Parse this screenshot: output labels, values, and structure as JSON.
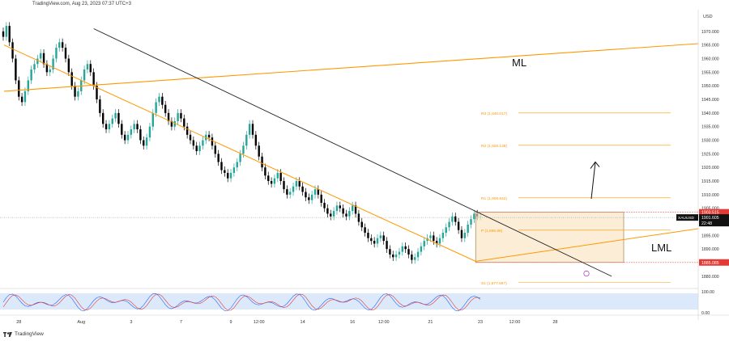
{
  "header": {
    "text": "TradingView.com, Aug 23, 2023 07:37 UTC+3",
    "footer_logo_text": "TradingView"
  },
  "chart_data": {
    "type": "candlestick",
    "currency_label": "USD",
    "y_ticks": [
      1970,
      1965,
      1960,
      1955,
      1950,
      1945,
      1940,
      1935,
      1930,
      1925,
      1920,
      1915,
      1910,
      1905,
      1900,
      1895,
      1890,
      1880
    ],
    "y_tick_labels": [
      "1970.000",
      "1965.000",
      "1960.000",
      "1955.000",
      "1950.000",
      "1945.000",
      "1940.000",
      "1935.000",
      "1930.000",
      "1925.000",
      "1920.000",
      "1915.000",
      "1910.000",
      "1905.000",
      "1900.000",
      "1895.000",
      "1890.000",
      "1880.000"
    ],
    "ylim": [
      1877,
      1975
    ],
    "x_labels": [
      {
        "label": "28",
        "i": 5
      },
      {
        "label": "Aug",
        "i": 25
      },
      {
        "label": "3",
        "i": 41
      },
      {
        "label": "7",
        "i": 57
      },
      {
        "label": "9",
        "i": 73
      },
      {
        "label": "12:00",
        "i": 82
      },
      {
        "label": "14",
        "i": 96
      },
      {
        "label": "16",
        "i": 112
      },
      {
        "label": "12:00",
        "i": 122
      },
      {
        "label": "21",
        "i": 137
      },
      {
        "label": "23",
        "i": 153
      },
      {
        "label": "12:00",
        "i": 164
      },
      {
        "label": "28",
        "i": 177
      }
    ],
    "candles_approx_close": [
      1968,
      1972,
      1966,
      1960,
      1952,
      1946,
      1944,
      1948,
      1952,
      1956,
      1958,
      1960,
      1962,
      1958,
      1955,
      1956,
      1960,
      1964,
      1966,
      1964,
      1960,
      1955,
      1950,
      1946,
      1948,
      1952,
      1956,
      1958,
      1955,
      1950,
      1945,
      1940,
      1936,
      1934,
      1936,
      1938,
      1940,
      1936,
      1932,
      1930,
      1932,
      1934,
      1936,
      1934,
      1930,
      1928,
      1931,
      1935,
      1940,
      1944,
      1946,
      1943,
      1940,
      1937,
      1935,
      1937,
      1940,
      1938,
      1935,
      1932,
      1930,
      1928,
      1926,
      1928,
      1930,
      1932,
      1931,
      1928,
      1925,
      1922,
      1919,
      1918,
      1916,
      1918,
      1920,
      1922,
      1925,
      1928,
      1932,
      1936,
      1932,
      1928,
      1924,
      1920,
      1917,
      1915,
      1914,
      1916,
      1918,
      1915,
      1912,
      1910,
      1911,
      1913,
      1915,
      1913,
      1911,
      1909,
      1908,
      1910,
      1912,
      1910,
      1907,
      1905,
      1903,
      1902,
      1904,
      1906,
      1905,
      1903,
      1902,
      1904,
      1906,
      1903,
      1900,
      1898,
      1896,
      1894,
      1893,
      1892,
      1894,
      1895,
      1893,
      1890,
      1888,
      1887,
      1888,
      1889,
      1891,
      1890,
      1888,
      1886,
      1887,
      1889,
      1891,
      1893,
      1894,
      1895,
      1893,
      1892,
      1894,
      1896,
      1898,
      1900,
      1902,
      1900,
      1897,
      1894,
      1896,
      1899,
      1901,
      1903,
      1902,
      1902
    ],
    "current_price": 1901.605,
    "current_price_label": "1901.605",
    "countdown_label": "22:48",
    "symbol_label": "XAUUSD",
    "range_box": {
      "top": 1903.515,
      "bottom": 1885.085,
      "top_label": "1903.515",
      "bottom_label": "1885.085"
    },
    "pivot_levels": [
      {
        "name": "R3",
        "value": 1940.017,
        "label": "R3 (1,940.017)"
      },
      {
        "name": "R2",
        "value": 1928.138,
        "label": "R2 (1,928.138)"
      },
      {
        "name": "R1",
        "value": 1908.842,
        "label": "R1 (1,908.842)"
      },
      {
        "name": "P",
        "value": 1896.963,
        "label": "P (1,896.96)"
      },
      {
        "name": "S1",
        "value": 1877.667,
        "label": "S1 (1,877.667)"
      }
    ],
    "annotations": [
      {
        "text": "ML",
        "kind": "median-line-label"
      },
      {
        "text": "LML",
        "kind": "lower-median-line-label"
      }
    ],
    "oscillator": {
      "ticks": [
        100,
        0
      ],
      "tick_labels": [
        "100.00",
        "0.00"
      ]
    },
    "colors": {
      "up": "#26a69a",
      "down": "#000000",
      "orange": "#ff9800",
      "red_marker": "#e53935",
      "box_fill": "#fbe3c2",
      "osc_band": "#dbe9fb",
      "osc_line1": "#2962ff",
      "osc_line2": "#e53935"
    }
  }
}
